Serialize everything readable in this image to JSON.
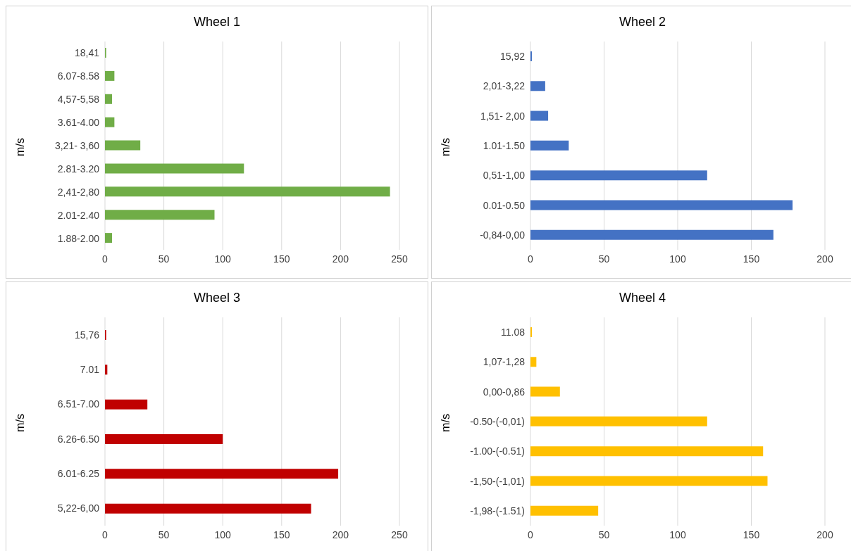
{
  "chart_data": [
    {
      "type": "bar",
      "orientation": "horizontal",
      "title": "Wheel 1",
      "ylabel": "m/s",
      "categories": [
        "18,41",
        "6.07-8.58",
        "4,57-5,58",
        "3.61-4.00",
        "3,21- 3,60",
        "2.81-3.20",
        "2,41-2,80",
        "2.01-2.40",
        "1.88-2.00"
      ],
      "values": [
        1,
        8,
        6,
        8,
        30,
        118,
        242,
        93,
        6
      ],
      "color": "#70ad47",
      "xlim": [
        0,
        250
      ],
      "xticks": [
        0,
        50,
        100,
        150,
        200,
        250
      ],
      "grid": "x"
    },
    {
      "type": "bar",
      "orientation": "horizontal",
      "title": "Wheel 2",
      "ylabel": "m/s",
      "categories": [
        "15,92",
        "2,01-3,22",
        "1,51- 2,00",
        "1.01-1.50",
        "0,51-1,00",
        "0.01-0.50",
        "-0,84-0,00"
      ],
      "values": [
        1,
        10,
        12,
        26,
        120,
        178,
        165
      ],
      "color": "#4472c4",
      "xlim": [
        0,
        200
      ],
      "xticks": [
        0,
        50,
        100,
        150,
        200
      ],
      "grid": "x"
    },
    {
      "type": "bar",
      "orientation": "horizontal",
      "title": "Wheel 3",
      "ylabel": "m/s",
      "categories": [
        "15,76",
        "7.01",
        "6.51-7.00",
        "6.26-6.50",
        "6.01-6.25",
        "5,22-6,00"
      ],
      "values": [
        1,
        2,
        36,
        100,
        198,
        175
      ],
      "color": "#c00000",
      "xlim": [
        0,
        250
      ],
      "xticks": [
        0,
        50,
        100,
        150,
        200,
        250
      ],
      "grid": "x"
    },
    {
      "type": "bar",
      "orientation": "horizontal",
      "title": "Wheel 4",
      "ylabel": "m/s",
      "categories": [
        "11.08",
        "1,07-1,28",
        "0,00-0,86",
        "-0.50-(-0,01)",
        "-1.00-(-0.51)",
        "-1,50-(-1,01)",
        "-1,98-(-1.51)"
      ],
      "values": [
        1,
        4,
        20,
        120,
        158,
        161,
        46
      ],
      "color": "#ffc000",
      "xlim": [
        0,
        200
      ],
      "xticks": [
        0,
        50,
        100,
        150,
        200
      ],
      "grid": "x"
    }
  ]
}
